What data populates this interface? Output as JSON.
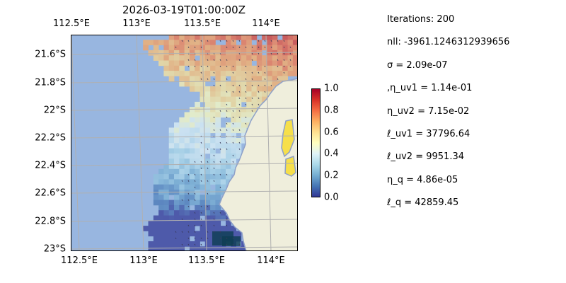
{
  "title": "2026-03-19T01:00:00Z",
  "chart_data": {
    "type": "heatmap",
    "title": "2026-03-19T01:00:00Z",
    "x_ticks": [
      "112.5°E",
      "113°E",
      "113.5°E",
      "114°E"
    ],
    "y_ticks": [
      "21.6°S",
      "21.8°S",
      "22°S",
      "22.2°S",
      "22.4°S",
      "22.6°S",
      "22.8°S",
      "23°S"
    ],
    "x_range": [
      112.5,
      114.2
    ],
    "y_range": [
      -23.02,
      -21.46
    ],
    "colorbar": {
      "ticks": [
        "0.0",
        "0.2",
        "0.4",
        "0.6",
        "0.8",
        "1.0"
      ],
      "range": [
        0,
        1
      ],
      "colormap": "RdYlBu_r"
    },
    "field": "normalized value over ocean, high (~0.75) in the north-east decreasing to ~0.05 in the south-east near the coast",
    "colors": {
      "ocean_background": "#98b6e0",
      "land": "#efeedc",
      "coastline": "#8ea0c8",
      "grid": "#b0b0b0"
    }
  },
  "info": [
    "Iterations: 200",
    "nll: -3961.1246312939656",
    "σ = 2.09e-07",
    ",η_uv1 = 1.14e-01",
    "η_uv2 = 7.15e-02",
    "ℓ_uv1 = 37796.64",
    "ℓ_uv2 = 9951.34",
    "η_q = 4.86e-05",
    "ℓ_q = 42859.45"
  ]
}
